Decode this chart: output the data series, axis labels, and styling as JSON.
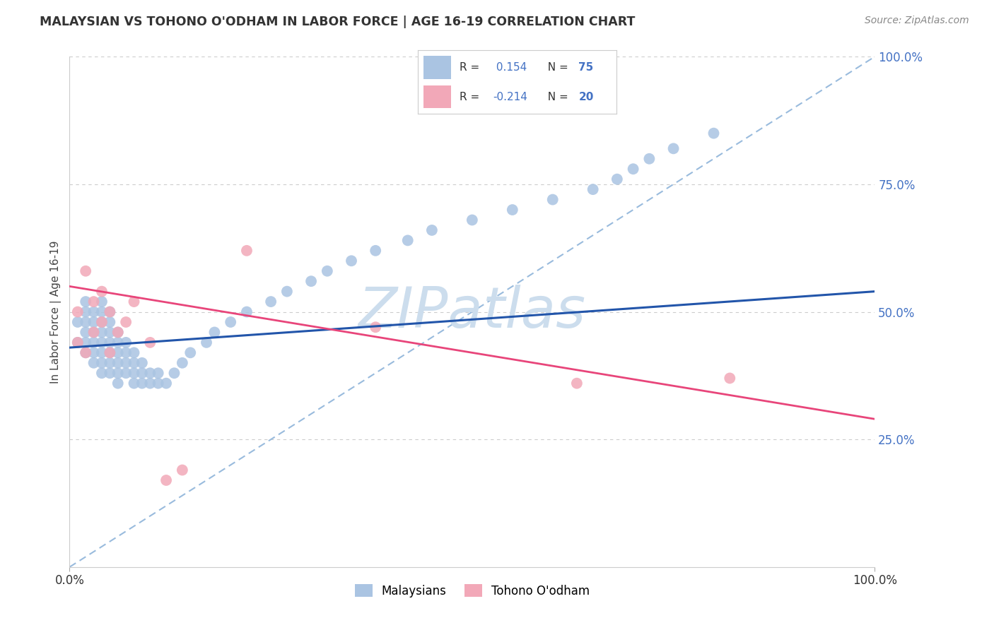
{
  "title": "MALAYSIAN VS TOHONO O'ODHAM IN LABOR FORCE | AGE 16-19 CORRELATION CHART",
  "source": "Source: ZipAtlas.com",
  "ylabel": "In Labor Force | Age 16-19",
  "xmin": 0.0,
  "xmax": 1.0,
  "ymin": 0.0,
  "ymax": 1.0,
  "r_malaysian": 0.154,
  "n_malaysian": 75,
  "r_tohono": -0.214,
  "n_tohono": 20,
  "color_malaysian": "#aac4e2",
  "color_tohono": "#f2a8b8",
  "line_color_malaysian": "#2255aa",
  "line_color_tohono": "#e8457a",
  "diag_line_color": "#99bbdd",
  "watermark_color": "#ccdded",
  "background_color": "#ffffff",
  "grid_color": "#cccccc",
  "legend_color": "#4472c4",
  "legend_r_color": "#4472c4",
  "legend_n_color": "#4472c4",
  "malaysian_x": [
    0.01,
    0.01,
    0.02,
    0.02,
    0.02,
    0.02,
    0.02,
    0.02,
    0.03,
    0.03,
    0.03,
    0.03,
    0.03,
    0.03,
    0.04,
    0.04,
    0.04,
    0.04,
    0.04,
    0.04,
    0.04,
    0.04,
    0.05,
    0.05,
    0.05,
    0.05,
    0.05,
    0.05,
    0.05,
    0.06,
    0.06,
    0.06,
    0.06,
    0.06,
    0.06,
    0.07,
    0.07,
    0.07,
    0.07,
    0.08,
    0.08,
    0.08,
    0.08,
    0.09,
    0.09,
    0.09,
    0.1,
    0.1,
    0.11,
    0.11,
    0.12,
    0.13,
    0.14,
    0.15,
    0.17,
    0.18,
    0.2,
    0.22,
    0.25,
    0.27,
    0.3,
    0.32,
    0.35,
    0.38,
    0.42,
    0.45,
    0.5,
    0.55,
    0.6,
    0.65,
    0.68,
    0.7,
    0.72,
    0.75,
    0.8
  ],
  "malaysian_y": [
    0.44,
    0.48,
    0.42,
    0.44,
    0.46,
    0.48,
    0.5,
    0.52,
    0.4,
    0.42,
    0.44,
    0.46,
    0.48,
    0.5,
    0.38,
    0.4,
    0.42,
    0.44,
    0.46,
    0.48,
    0.5,
    0.52,
    0.38,
    0.4,
    0.42,
    0.44,
    0.46,
    0.48,
    0.5,
    0.36,
    0.38,
    0.4,
    0.42,
    0.44,
    0.46,
    0.38,
    0.4,
    0.42,
    0.44,
    0.36,
    0.38,
    0.4,
    0.42,
    0.36,
    0.38,
    0.4,
    0.36,
    0.38,
    0.36,
    0.38,
    0.36,
    0.38,
    0.4,
    0.42,
    0.44,
    0.46,
    0.48,
    0.5,
    0.52,
    0.54,
    0.56,
    0.58,
    0.6,
    0.62,
    0.64,
    0.66,
    0.68,
    0.7,
    0.72,
    0.74,
    0.76,
    0.78,
    0.8,
    0.82,
    0.85
  ],
  "tohono_x": [
    0.01,
    0.01,
    0.02,
    0.02,
    0.03,
    0.03,
    0.04,
    0.04,
    0.05,
    0.05,
    0.06,
    0.07,
    0.08,
    0.1,
    0.12,
    0.14,
    0.22,
    0.38,
    0.63,
    0.82
  ],
  "tohono_y": [
    0.44,
    0.5,
    0.42,
    0.58,
    0.46,
    0.52,
    0.48,
    0.54,
    0.42,
    0.5,
    0.46,
    0.48,
    0.52,
    0.44,
    0.17,
    0.19,
    0.62,
    0.47,
    0.36,
    0.37
  ],
  "blue_line_x0": 0.0,
  "blue_line_y0": 0.43,
  "blue_line_x1": 1.0,
  "blue_line_y1": 0.54,
  "pink_line_x0": 0.0,
  "pink_line_y0": 0.55,
  "pink_line_x1": 1.0,
  "pink_line_y1": 0.29
}
